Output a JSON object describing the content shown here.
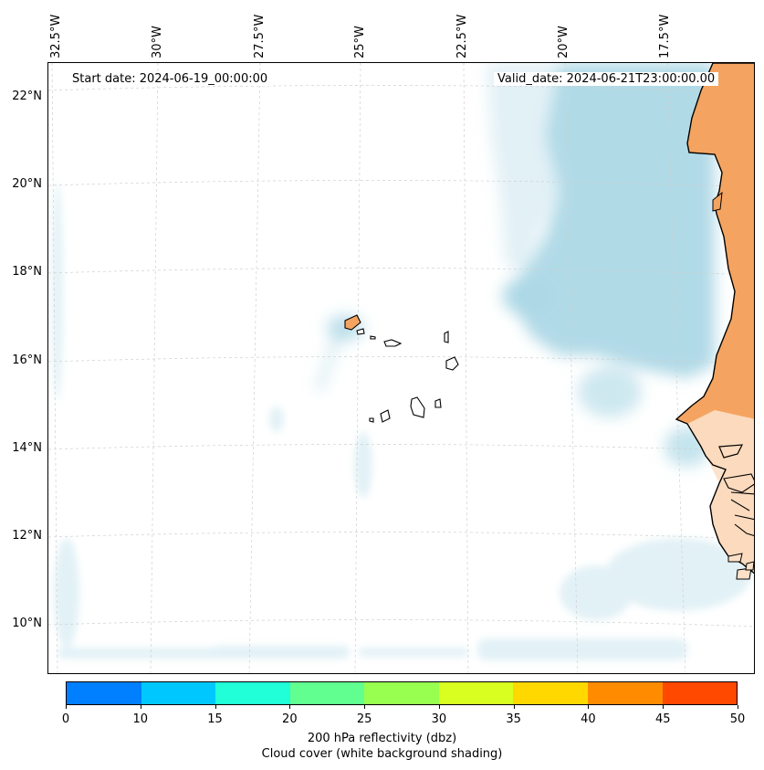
{
  "map": {
    "annotations": {
      "start_date": "Start date: 2024-06-19_00:00:00",
      "valid_date": "Valid_date: 2024-06-21T23:00:00.00"
    },
    "lon_labels": [
      "32.5°W",
      "30°W",
      "27.5°W",
      "25°W",
      "22.5°W",
      "20°W",
      "17.5°W"
    ],
    "lat_labels": [
      "22°N",
      "20°N",
      "18°N",
      "16°N",
      "14°N",
      "12°N",
      "10°N"
    ],
    "region": "Cabo Verde Islands and West African coast (Mauritania, Senegal, Gambia, Guinea-Bissau)",
    "colors": {
      "land_reflectivity": "#f4a460",
      "cloud_cover": "#add8e6",
      "coastline": "#000000",
      "gridline": "#d0d0d0"
    }
  },
  "colorbar": {
    "tick_labels": [
      "0",
      "10",
      "15",
      "20",
      "25",
      "30",
      "35",
      "40",
      "45",
      "50"
    ],
    "colors": [
      "#0080ff",
      "#00c8ff",
      "#20ffd8",
      "#60ff90",
      "#98ff50",
      "#d8ff20",
      "#ffd800",
      "#ff8c00",
      "#ff4800"
    ],
    "title_line1": "200 hPa reflectivity (dbz)",
    "title_line2": "Cloud cover (white background shading)"
  }
}
